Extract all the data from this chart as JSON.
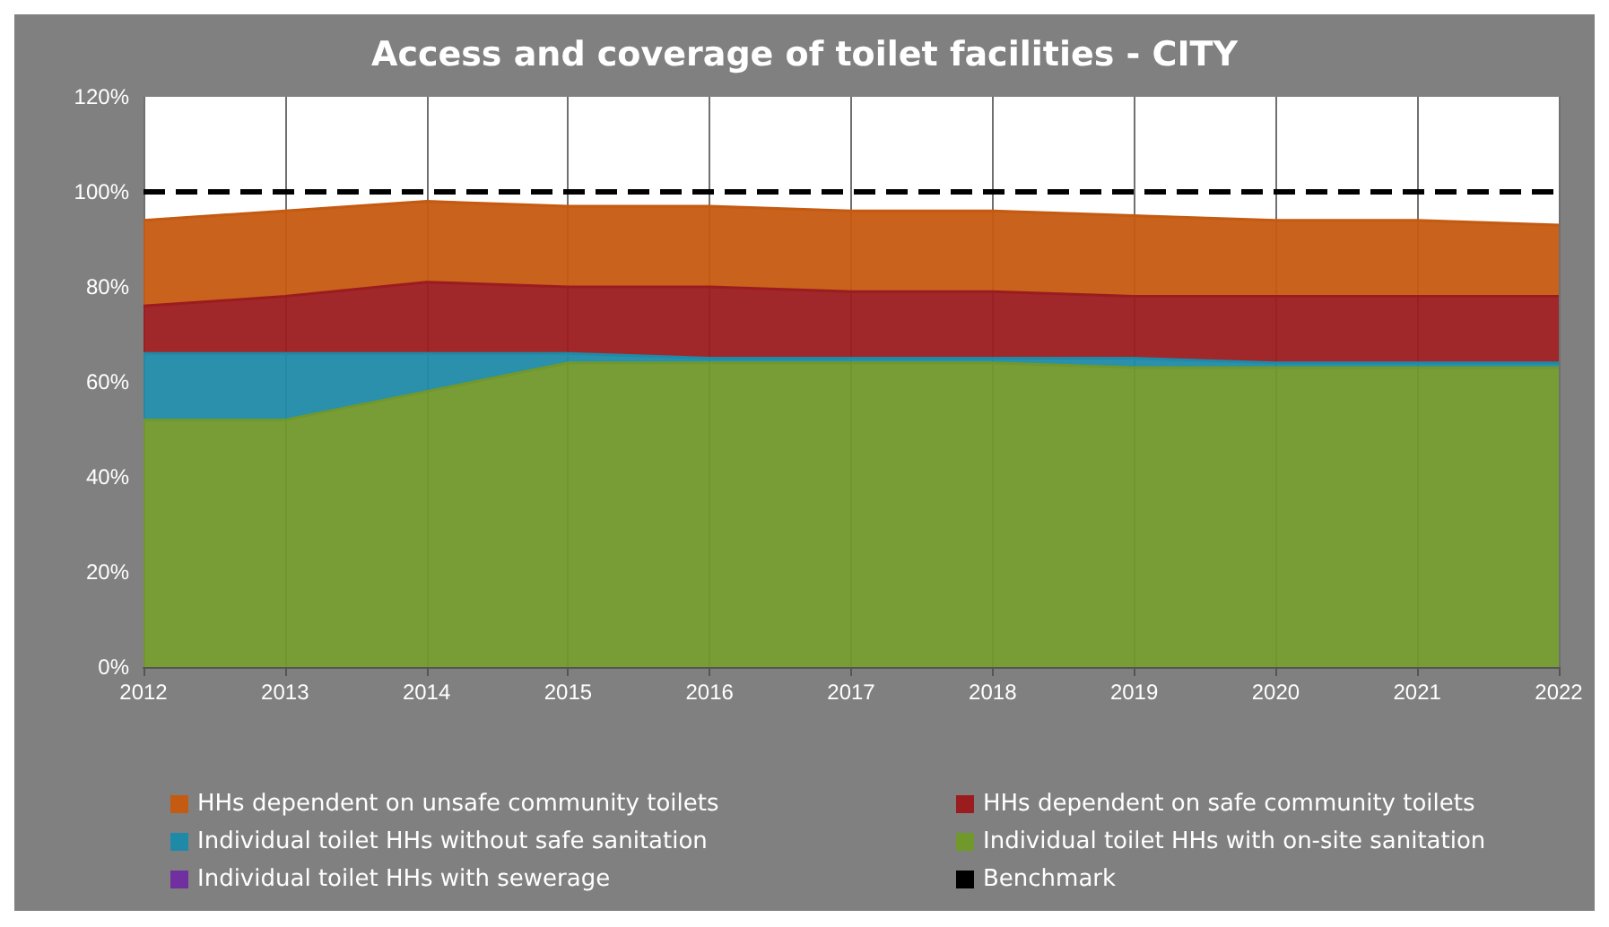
{
  "chart_data": {
    "type": "area",
    "title": "Access and coverage of toilet facilities - CITY",
    "categories": [
      "2012",
      "2013",
      "2014",
      "2015",
      "2016",
      "2017",
      "2018",
      "2019",
      "2020",
      "2021",
      "2022"
    ],
    "stacked": true,
    "series": [
      {
        "name": "Individual toilet HHs with sewerage",
        "color": "#7030a0",
        "values": [
          null,
          null,
          null,
          null,
          null,
          null,
          null,
          null,
          null,
          null,
          null
        ]
      },
      {
        "name": "Individual toilet HHs with on-site sanitation",
        "color": "#71982b",
        "values": [
          52,
          52,
          58,
          64,
          64,
          64,
          64,
          63,
          63,
          63,
          63
        ]
      },
      {
        "name": "Individual toilet HHs without safe sanitation",
        "color": "#1f8aa8",
        "values": [
          14,
          14,
          8,
          2,
          1,
          1,
          1,
          2,
          1,
          1,
          1
        ]
      },
      {
        "name": "HHs dependent on safe community toilets",
        "color": "#9b1c1f",
        "values": [
          10,
          12,
          15,
          14,
          15,
          14,
          14,
          13,
          14,
          14,
          14
        ]
      },
      {
        "name": "HHs dependent on unsafe community toilets",
        "color": "#c55a11",
        "values": [
          18,
          18,
          17,
          17,
          17,
          17,
          17,
          17,
          16,
          16,
          15
        ]
      },
      {
        "name": "Benchmark",
        "type": "line",
        "line_style": "dashed",
        "color": "#000000",
        "values": [
          100,
          100,
          100,
          100,
          100,
          100,
          100,
          100,
          100,
          100,
          100
        ]
      }
    ],
    "ylim": [
      0,
      120
    ],
    "yticks": [
      {
        "value": 0,
        "label": "0%"
      },
      {
        "value": 20,
        "label": "20%"
      },
      {
        "value": 40,
        "label": "40%"
      },
      {
        "value": 60,
        "label": "60%"
      },
      {
        "value": 80,
        "label": "80%"
      },
      {
        "value": 100,
        "label": "100%"
      },
      {
        "value": 120,
        "label": "120%"
      }
    ],
    "grid": "x",
    "legend": "bottom",
    "marker": "none"
  }
}
